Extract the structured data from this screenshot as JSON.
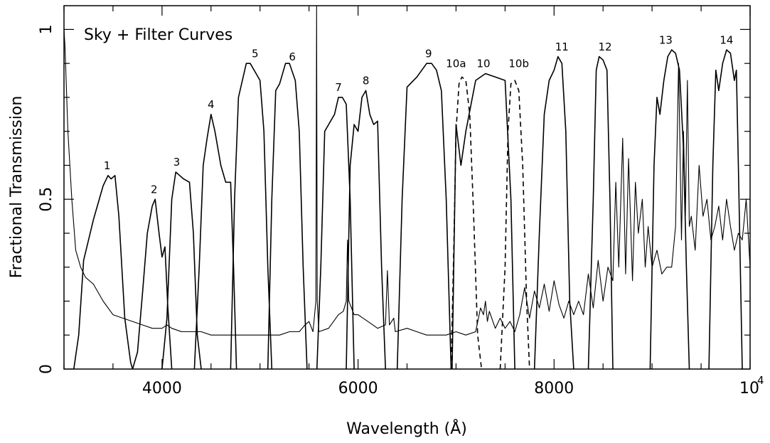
{
  "chart_data": {
    "type": "line",
    "title": "Sky + Filter Curves",
    "xlabel": "Wavelength (Å)",
    "ylabel": "Fractional Transmission",
    "xlim": [
      3000,
      10000
    ],
    "ylim": [
      0,
      1.07
    ],
    "x_ticks": [
      {
        "value": 4000,
        "label": "4000"
      },
      {
        "value": 6000,
        "label": "6000"
      },
      {
        "value": 8000,
        "label": "8000"
      }
    ],
    "x_tick_last": {
      "value": 10000,
      "base": "10",
      "exp": "4"
    },
    "y_ticks": [
      {
        "value": 0,
        "label": "0"
      },
      {
        "value": 0.5,
        "label": "0.5"
      },
      {
        "value": 1,
        "label": "1"
      }
    ],
    "grid": false,
    "sky_spectrum": {
      "x": [
        3000,
        3010,
        3040,
        3080,
        3120,
        3170,
        3220,
        3300,
        3400,
        3500,
        3600,
        3700,
        3800,
        3900,
        4000,
        4050,
        4100,
        4200,
        4300,
        4400,
        4500,
        4600,
        4700,
        4800,
        4900,
        5000,
        5100,
        5200,
        5300,
        5400,
        5460,
        5500,
        5540,
        5570,
        5577,
        5584,
        5600,
        5700,
        5800,
        5850,
        5880,
        5893,
        5906,
        5920,
        5960,
        6000,
        6100,
        6200,
        6280,
        6300,
        6320,
        6364,
        6380,
        6500,
        6600,
        6700,
        6800,
        6900,
        7000,
        7100,
        7200,
        7250,
        7280,
        7300,
        7320,
        7340,
        7400,
        7450,
        7500,
        7550,
        7600,
        7650,
        7700,
        7750,
        7800,
        7850,
        7900,
        7950,
        8000,
        8050,
        8100,
        8150,
        8200,
        8250,
        8300,
        8350,
        8400,
        8450,
        8500,
        8550,
        8600,
        8630,
        8660,
        8700,
        8730,
        8760,
        8800,
        8830,
        8860,
        8900,
        8930,
        8960,
        9000,
        9050,
        9100,
        9150,
        9200,
        9240,
        9270,
        9300,
        9320,
        9340,
        9360,
        9380,
        9400,
        9440,
        9480,
        9520,
        9560,
        9600,
        9640,
        9680,
        9720,
        9760,
        9800,
        9840,
        9880,
        9920,
        9960,
        10000
      ],
      "y": [
        1.0,
        0.95,
        0.7,
        0.5,
        0.35,
        0.3,
        0.27,
        0.25,
        0.2,
        0.16,
        0.15,
        0.14,
        0.13,
        0.12,
        0.12,
        0.13,
        0.12,
        0.11,
        0.11,
        0.11,
        0.1,
        0.1,
        0.1,
        0.1,
        0.1,
        0.1,
        0.1,
        0.1,
        0.11,
        0.11,
        0.13,
        0.14,
        0.11,
        0.2,
        1.07,
        0.2,
        0.11,
        0.12,
        0.16,
        0.17,
        0.2,
        0.38,
        0.2,
        0.19,
        0.16,
        0.16,
        0.14,
        0.12,
        0.13,
        0.29,
        0.13,
        0.15,
        0.11,
        0.12,
        0.11,
        0.1,
        0.1,
        0.1,
        0.11,
        0.1,
        0.11,
        0.18,
        0.16,
        0.2,
        0.14,
        0.17,
        0.12,
        0.15,
        0.12,
        0.14,
        0.11,
        0.16,
        0.24,
        0.15,
        0.23,
        0.18,
        0.25,
        0.17,
        0.26,
        0.19,
        0.15,
        0.2,
        0.16,
        0.2,
        0.16,
        0.28,
        0.18,
        0.32,
        0.2,
        0.3,
        0.26,
        0.55,
        0.3,
        0.68,
        0.28,
        0.62,
        0.26,
        0.55,
        0.4,
        0.5,
        0.3,
        0.42,
        0.3,
        0.35,
        0.28,
        0.3,
        0.3,
        0.42,
        0.9,
        0.38,
        0.7,
        0.45,
        0.85,
        0.42,
        0.45,
        0.35,
        0.6,
        0.45,
        0.5,
        0.38,
        0.42,
        0.48,
        0.38,
        0.5,
        0.42,
        0.35,
        0.4,
        0.38,
        0.5,
        0.3
      ]
    },
    "filters": [
      {
        "label": "1",
        "dashed": false,
        "x": [
          3100,
          3150,
          3200,
          3300,
          3400,
          3450,
          3480,
          3520,
          3560,
          3620,
          3680,
          3700
        ],
        "y": [
          0.0,
          0.1,
          0.32,
          0.44,
          0.54,
          0.57,
          0.56,
          0.57,
          0.45,
          0.15,
          0.02,
          0.0
        ]
      },
      {
        "label": "2",
        "dashed": false,
        "x": [
          3700,
          3750,
          3800,
          3850,
          3900,
          3930,
          3970,
          4000,
          4030,
          4060,
          4100
        ],
        "y": [
          0.0,
          0.05,
          0.22,
          0.4,
          0.48,
          0.5,
          0.4,
          0.33,
          0.36,
          0.18,
          0.0
        ]
      },
      {
        "label": "3",
        "dashed": false,
        "x": [
          4000,
          4050,
          4100,
          4140,
          4180,
          4220,
          4280,
          4320,
          4360,
          4400
        ],
        "y": [
          0.0,
          0.15,
          0.5,
          0.58,
          0.57,
          0.56,
          0.55,
          0.4,
          0.1,
          0.0
        ]
      },
      {
        "label": "4",
        "dashed": false,
        "x": [
          4330,
          4380,
          4420,
          4460,
          4500,
          4540,
          4600,
          4650,
          4700,
          4730,
          4760
        ],
        "y": [
          0.0,
          0.3,
          0.6,
          0.68,
          0.75,
          0.7,
          0.6,
          0.55,
          0.55,
          0.3,
          0.0
        ]
      },
      {
        "label": "5",
        "dashed": false,
        "x": [
          4700,
          4740,
          4780,
          4820,
          4860,
          4900,
          4960,
          5000,
          5040,
          5080,
          5120
        ],
        "y": [
          0.0,
          0.5,
          0.8,
          0.85,
          0.9,
          0.9,
          0.87,
          0.85,
          0.7,
          0.3,
          0.0
        ]
      },
      {
        "label": "6",
        "dashed": false,
        "x": [
          5080,
          5120,
          5160,
          5200,
          5260,
          5300,
          5360,
          5400,
          5440,
          5480
        ],
        "y": [
          0.0,
          0.5,
          0.82,
          0.84,
          0.9,
          0.9,
          0.85,
          0.7,
          0.3,
          0.0
        ]
      },
      {
        "label": "7",
        "dashed": false,
        "x": [
          5580,
          5620,
          5660,
          5700,
          5760,
          5800,
          5840,
          5880,
          5920,
          5960
        ],
        "y": [
          0.0,
          0.3,
          0.7,
          0.72,
          0.75,
          0.8,
          0.8,
          0.78,
          0.5,
          0.0
        ]
      },
      {
        "label": "8",
        "dashed": false,
        "x": [
          5880,
          5920,
          5960,
          6000,
          6040,
          6080,
          6120,
          6160,
          6200,
          6240,
          6280
        ],
        "y": [
          0.0,
          0.6,
          0.72,
          0.7,
          0.8,
          0.82,
          0.75,
          0.72,
          0.73,
          0.3,
          0.0
        ]
      },
      {
        "label": "9",
        "dashed": false,
        "x": [
          6400,
          6450,
          6500,
          6600,
          6700,
          6750,
          6800,
          6850,
          6900,
          6950
        ],
        "y": [
          0.0,
          0.5,
          0.83,
          0.86,
          0.9,
          0.9,
          0.88,
          0.82,
          0.5,
          0.0
        ]
      },
      {
        "label": "10a",
        "dashed": true,
        "x": [
          6950,
          6980,
          7000,
          7030,
          7060,
          7100,
          7140,
          7180,
          7220,
          7260
        ],
        "y": [
          0.0,
          0.4,
          0.7,
          0.84,
          0.86,
          0.85,
          0.75,
          0.45,
          0.1,
          0.0
        ]
      },
      {
        "label": "10",
        "dashed": false,
        "x": [
          6960,
          7000,
          7050,
          7100,
          7200,
          7300,
          7400,
          7500,
          7560,
          7600
        ],
        "y": [
          0.0,
          0.72,
          0.6,
          0.7,
          0.85,
          0.87,
          0.86,
          0.85,
          0.5,
          0.0
        ]
      },
      {
        "label": "10b",
        "dashed": true,
        "x": [
          7450,
          7500,
          7530,
          7560,
          7600,
          7640,
          7680,
          7720,
          7750
        ],
        "y": [
          0.0,
          0.3,
          0.7,
          0.84,
          0.85,
          0.82,
          0.6,
          0.2,
          0.0
        ]
      },
      {
        "label": "11",
        "dashed": false,
        "x": [
          7800,
          7850,
          7900,
          7950,
          8000,
          8040,
          8080,
          8120,
          8160,
          8200
        ],
        "y": [
          0.0,
          0.4,
          0.75,
          0.85,
          0.88,
          0.92,
          0.9,
          0.7,
          0.2,
          0.0
        ]
      },
      {
        "label": "12",
        "dashed": false,
        "x": [
          8350,
          8400,
          8430,
          8460,
          8500,
          8540,
          8570,
          8600
        ],
        "y": [
          0.0,
          0.5,
          0.88,
          0.92,
          0.91,
          0.88,
          0.5,
          0.0
        ]
      },
      {
        "label": "13",
        "dashed": false,
        "x": [
          8980,
          9020,
          9050,
          9080,
          9120,
          9160,
          9200,
          9240,
          9280,
          9320,
          9350,
          9380
        ],
        "y": [
          0.0,
          0.6,
          0.8,
          0.75,
          0.85,
          0.92,
          0.94,
          0.93,
          0.88,
          0.65,
          0.3,
          0.0
        ]
      },
      {
        "label": "14",
        "dashed": false,
        "x": [
          9580,
          9620,
          9650,
          9680,
          9720,
          9760,
          9800,
          9840,
          9860,
          9880,
          9920
        ],
        "y": [
          0.0,
          0.6,
          0.88,
          0.82,
          0.9,
          0.94,
          0.93,
          0.85,
          0.88,
          0.6,
          0.0
        ]
      }
    ],
    "filter_label_positions": [
      {
        "label": "1",
        "x": 3440,
        "y": 0.58
      },
      {
        "label": "2",
        "x": 3920,
        "y": 0.51
      },
      {
        "label": "3",
        "x": 4150,
        "y": 0.59
      },
      {
        "label": "4",
        "x": 4500,
        "y": 0.76
      },
      {
        "label": "5",
        "x": 4950,
        "y": 0.91
      },
      {
        "label": "6",
        "x": 5330,
        "y": 0.9
      },
      {
        "label": "7",
        "x": 5800,
        "y": 0.81
      },
      {
        "label": "8",
        "x": 6080,
        "y": 0.83
      },
      {
        "label": "9",
        "x": 6720,
        "y": 0.91
      },
      {
        "label": "10a",
        "x": 7000,
        "y": 0.88
      },
      {
        "label": "10",
        "x": 7280,
        "y": 0.88
      },
      {
        "label": "10b",
        "x": 7640,
        "y": 0.88
      },
      {
        "label": "11",
        "x": 8080,
        "y": 0.93
      },
      {
        "label": "12",
        "x": 8520,
        "y": 0.93
      },
      {
        "label": "13",
        "x": 9140,
        "y": 0.95
      },
      {
        "label": "14",
        "x": 9760,
        "y": 0.95
      }
    ]
  }
}
